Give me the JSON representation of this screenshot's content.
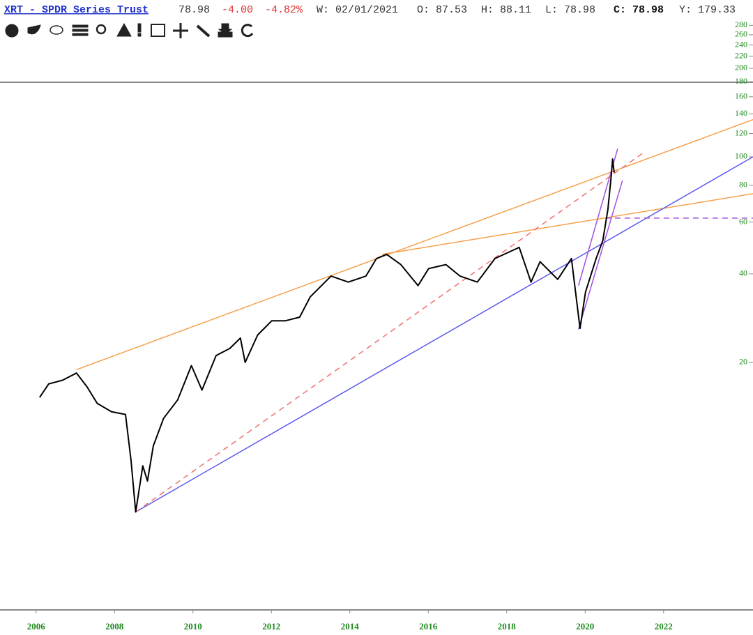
{
  "header": {
    "symbol": "XRT - SPDR Series Trust",
    "last": "78.98",
    "change": "-4.00",
    "change_pct": "-4.82%",
    "date": "W: 02/01/2021",
    "open": "O: 87.53",
    "high": "H: 88.11",
    "low": "L: 78.98",
    "close": "C: 78.98",
    "year_high": "Y: 179.33"
  },
  "chart_data": {
    "type": "line",
    "log_scale": true,
    "xlim": [
      2005.08,
      2024.28
    ],
    "xticks": [
      2006,
      2008,
      2010,
      2012,
      2014,
      2016,
      2018,
      2020,
      2022
    ],
    "ylim": [
      2.88,
      293
    ],
    "yticks": [
      20,
      40,
      60,
      80,
      100,
      120,
      140,
      160,
      180,
      200,
      220,
      240,
      260,
      280
    ],
    "series": [
      {
        "color": "#000000",
        "x": [
          2006.09,
          2006.32,
          2006.68,
          2007.03,
          2007.3,
          2007.56,
          2007.92,
          2008.28,
          2008.42,
          2008.54,
          2008.72,
          2008.84,
          2008.99,
          2009.25,
          2009.61,
          2009.96,
          2010.23,
          2010.59,
          2010.94,
          2011.21,
          2011.33,
          2011.65,
          2012.01,
          2012.36,
          2012.72,
          2012.99,
          2013.52,
          2013.96,
          2014.41,
          2014.68,
          2014.94,
          2015.3,
          2015.74,
          2016.01,
          2016.45,
          2016.81,
          2017.25,
          2017.7,
          2018.32,
          2018.62,
          2018.85,
          2019.3,
          2019.65,
          2019.87,
          2020.01,
          2020.28,
          2020.45,
          2020.58,
          2020.67,
          2020.7,
          2020.74
        ],
        "values": [
          15.2,
          16.9,
          17.4,
          18.4,
          16.5,
          14.5,
          13.6,
          13.3,
          9.3,
          6.2,
          8.9,
          7.9,
          10.4,
          12.9,
          14.9,
          19.5,
          16.1,
          21.1,
          22.3,
          24.2,
          20,
          24.8,
          27.7,
          27.7,
          28.5,
          33.4,
          39.3,
          37.5,
          39.3,
          45.1,
          46.6,
          43.0,
          36.5,
          41.7,
          43.0,
          39.3,
          37.5,
          45.1,
          49.2,
          37.5,
          44.0,
          38.3,
          45.1,
          26.1,
          34.7,
          45.1,
          51.9,
          66.3,
          87.3,
          98.3,
          88.4
        ]
      }
    ],
    "trendlines": [
      {
        "color": "#f5a04a",
        "dash": false,
        "x": [
          2007.03,
          2024.28
        ],
        "values": [
          18.9,
          133.8
        ]
      },
      {
        "color": "#f5a04a",
        "dash": false,
        "x": [
          2014.82,
          2024.28
        ],
        "values": [
          46.6,
          74.9
        ]
      },
      {
        "color": "#5a5af0",
        "dash": false,
        "x": [
          2008.54,
          2024.28
        ],
        "values": [
          6.2,
          100
        ]
      },
      {
        "color": "#f07070",
        "dash": true,
        "x": [
          2008.54,
          2021.52
        ],
        "values": [
          6.2,
          104
        ]
      },
      {
        "color": "#a050e0",
        "dash": false,
        "x": [
          2019.83,
          2020.95
        ],
        "values": [
          25.9,
          83.0
        ]
      },
      {
        "color": "#a050e0",
        "dash": false,
        "x": [
          2019.83,
          2020.83
        ],
        "values": [
          36.5,
          106.6
        ]
      },
      {
        "color": "#a050e0",
        "dash": true,
        "x": [
          2020.51,
          2024.28
        ],
        "values": [
          61.9,
          61.9
        ]
      }
    ]
  }
}
